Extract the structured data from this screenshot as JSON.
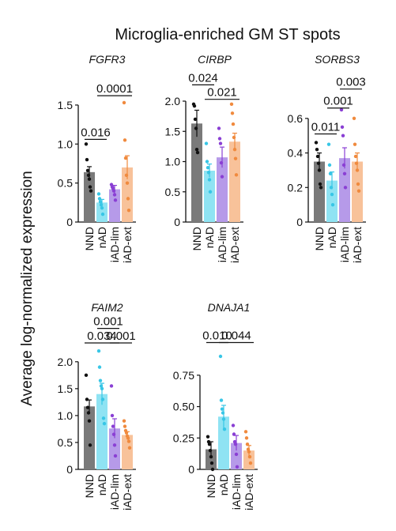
{
  "figure": {
    "title": "Microglia-enriched GM ST spots",
    "ylabel": "Average log-normalized expression"
  },
  "chart_data": [
    {
      "type": "bar",
      "title": "FGFR3",
      "categories": [
        "NND",
        "nAD",
        "iAD-lim",
        "iAD-ext"
      ],
      "values": [
        0.64,
        0.25,
        0.42,
        0.7
      ],
      "errors": [
        0.07,
        0.04,
        0.05,
        0.15
      ],
      "points": [
        [
          1.0,
          0.8,
          0.66,
          0.6,
          0.55,
          0.45,
          0.4
        ],
        [
          0.36,
          0.3,
          0.26,
          0.22,
          0.18,
          0.1
        ],
        [
          0.48,
          0.45,
          0.43,
          0.4,
          0.35,
          0.28
        ],
        [
          1.53,
          1.05,
          0.82,
          0.6,
          0.5,
          0.3,
          0.15
        ]
      ],
      "yticks": [
        0,
        0.5,
        1.0,
        1.5
      ],
      "ytick_labels": [
        "0",
        "0.5",
        "1.0",
        "1.5"
      ],
      "ylim": [
        0,
        1.55
      ],
      "comparisons": [
        {
          "from": 0,
          "to": 1,
          "label": "0.016",
          "y": 1.06
        },
        {
          "from": 1,
          "to": 3,
          "label": "0.0001",
          "y": 1.62
        }
      ]
    },
    {
      "type": "bar",
      "title": "CIRBP",
      "categories": [
        "NND",
        "nAD",
        "iAD-lim",
        "iAD-ext"
      ],
      "values": [
        1.63,
        0.85,
        1.07,
        1.33
      ],
      "errors": [
        0.22,
        0.11,
        0.17,
        0.14
      ],
      "points": [
        [
          1.95,
          1.92,
          1.7,
          1.55,
          1.2,
          1.15
        ],
        [
          1.3,
          1.0,
          0.9,
          0.82,
          0.7,
          0.5
        ],
        [
          1.55,
          1.38,
          1.3,
          0.98,
          0.75
        ],
        [
          1.95,
          1.8,
          1.62,
          1.4,
          1.2,
          1.05,
          0.78
        ]
      ],
      "yticks": [
        0,
        0.5,
        1.0,
        1.5,
        2.0
      ],
      "ytick_labels": [
        "0",
        "0.5",
        "1.0",
        "1.5",
        "2.0"
      ],
      "ylim": [
        0,
        2.0
      ],
      "comparisons": [
        {
          "from": 0,
          "to": 1,
          "label": "0.024",
          "y": 2.27
        },
        {
          "from": 1,
          "to": 3,
          "label": "0.021",
          "y": 2.03
        }
      ]
    },
    {
      "type": "bar",
      "title": "SORBS3",
      "categories": [
        "NND",
        "nAD",
        "iAD-lim",
        "iAD-ext"
      ],
      "values": [
        0.35,
        0.24,
        0.37,
        0.35
      ],
      "errors": [
        0.05,
        0.05,
        0.06,
        0.05
      ],
      "points": [
        [
          0.46,
          0.42,
          0.38,
          0.34,
          0.3,
          0.22,
          0.2
        ],
        [
          0.45,
          0.33,
          0.28,
          0.2,
          0.16,
          0.1
        ],
        [
          0.65,
          0.55,
          0.5,
          0.33,
          0.28,
          0.2
        ],
        [
          0.6,
          0.45,
          0.38,
          0.34,
          0.3,
          0.22,
          0.18
        ]
      ],
      "yticks": [
        0,
        0.2,
        0.4,
        0.6
      ],
      "ytick_labels": [
        "0",
        "0.2",
        "0.4",
        "0.6"
      ],
      "ylim": [
        0,
        0.7
      ],
      "comparisons": [
        {
          "from": 0,
          "to": 1,
          "label": "0.011",
          "y": 0.51
        },
        {
          "from": 1,
          "to": 2,
          "label": "0.001",
          "y": 0.66
        },
        {
          "from": 2,
          "to": 3,
          "label": "0.003",
          "y": 0.77
        }
      ]
    },
    {
      "type": "bar",
      "title": "FAIM2",
      "categories": [
        "NND",
        "nAD",
        "iAD-lim",
        "iAD-ext"
      ],
      "values": [
        1.17,
        1.4,
        0.76,
        0.64
      ],
      "errors": [
        0.12,
        0.2,
        0.18,
        0.06
      ],
      "points": [
        [
          1.75,
          1.3,
          1.15,
          1.05,
          0.9,
          0.45
        ],
        [
          2.2,
          1.9,
          1.65,
          1.55,
          1.5,
          1.3,
          0.95,
          0.85
        ],
        [
          1.55,
          1.0,
          0.8,
          0.65,
          0.45,
          0.25
        ],
        [
          0.9,
          0.8,
          0.72,
          0.68,
          0.62,
          0.58,
          0.52,
          0.4
        ]
      ],
      "yticks": [
        0,
        0.5,
        1.0,
        1.5,
        2.0
      ],
      "ytick_labels": [
        "0",
        "0.5",
        "1.0",
        "1.5",
        "2.0"
      ],
      "ylim": [
        0,
        2.1
      ],
      "comparisons": [
        {
          "from": 0,
          "to": 2,
          "label": "0.034",
          "y": 2.35
        },
        {
          "from": 1,
          "to": 2,
          "label": "0.001",
          "y": 2.62
        },
        {
          "from": 2,
          "to": 3,
          "label": "0.001",
          "y": 2.35
        }
      ]
    },
    {
      "type": "bar",
      "title": "DNAJA1",
      "categories": [
        "NND",
        "nAD",
        "iAD-lim",
        "iAD-ext"
      ],
      "values": [
        0.16,
        0.42,
        0.21,
        0.15
      ],
      "errors": [
        0.06,
        0.09,
        0.06,
        0.04
      ],
      "points": [
        [
          0.26,
          0.22,
          0.2,
          0.15,
          0.1,
          0.05,
          0.0
        ],
        [
          0.9,
          0.55,
          0.48,
          0.45,
          0.4,
          0.32
        ],
        [
          0.35,
          0.28,
          0.22,
          0.2,
          0.12,
          0.02
        ],
        [
          0.3,
          0.25,
          0.2,
          0.16,
          0.14,
          0.1,
          0.05
        ]
      ],
      "yticks": [
        0,
        0.25,
        0.5,
        0.75
      ],
      "ytick_labels": [
        "0",
        "0.25",
        "0.50",
        "0.75"
      ],
      "ylim": [
        0,
        0.9
      ],
      "comparisons": [
        {
          "from": 0,
          "to": 1,
          "label": "0.010",
          "y": 1.01
        },
        {
          "from": 1,
          "to": 3,
          "label": "0.044",
          "y": 1.01
        }
      ]
    }
  ],
  "colors": {
    "NND": "#7a7a7a",
    "nAD": "#8fe3f3",
    "iAD-lim": "#b69ae9",
    "iAD-ext": "#f8c29a",
    "NND_dots": "#111111",
    "nAD_dots": "#38c6e6",
    "iAD-lim_dots": "#8a3fd4",
    "iAD-ext_dots": "#f08a3e",
    "axis": "#111111"
  }
}
